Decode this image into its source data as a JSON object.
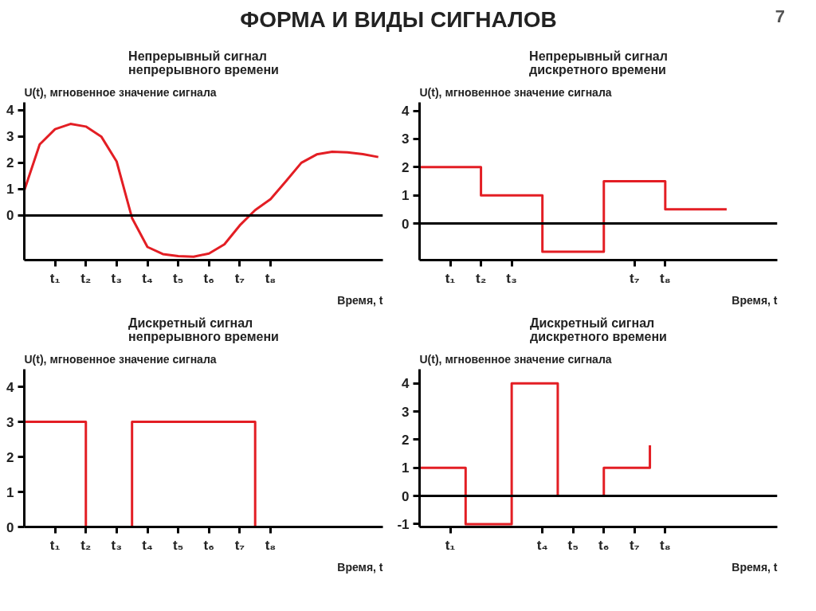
{
  "chart_data": [
    {
      "type": "line",
      "title": "Непрерывный сигнал\nнепрерывного времени",
      "ylabel": "U(t), мгновенное значение сигнала",
      "xlabel": "Время, t",
      "annotations": [
        "ФОРМА И ВИДЫ СИГНАЛОВ",
        "7"
      ],
      "categories": [
        null,
        null,
        "t₁",
        null,
        "t₂",
        null,
        "t₃",
        null,
        "t₄",
        null,
        "t₅",
        null,
        "t₆",
        null,
        "t₇",
        null,
        "t₈",
        null,
        null,
        null,
        null,
        null,
        null,
        null
      ],
      "series": [
        {
          "color": "#e31e24",
          "values": [
            0.95,
            2.7,
            3.28,
            3.48,
            3.38,
            3.0,
            2.05,
            -0.1,
            -1.2,
            -1.47,
            -1.55,
            -1.57,
            -1.45,
            -1.1,
            -0.38,
            0.2,
            0.62,
            1.3,
            2.0,
            2.32,
            2.42,
            2.4,
            2.33,
            2.22
          ]
        }
      ],
      "ylim": [
        -1.7,
        4.3
      ],
      "yticks": [
        0,
        1,
        2,
        3,
        4
      ],
      "ref_lines": [
        {
          "axis": "y",
          "value": 0
        }
      ]
    },
    {
      "type": "step",
      "title": "Непрерывный сигнал\nдискретного времени",
      "ylabel": "U(t), мгновенное значение сигнала",
      "xlabel": "Время, t",
      "categories": [
        null,
        null,
        "t₁",
        null,
        "t₂",
        null,
        "t₃",
        null,
        null,
        null,
        null,
        null,
        null,
        null,
        "t₇",
        null,
        "t₈",
        null,
        null,
        null,
        null,
        null,
        null,
        null
      ],
      "series": [
        {
          "color": "#e31e24",
          "values": [
            2,
            2,
            2,
            2,
            1,
            1,
            1,
            1,
            -1,
            -1,
            -1,
            -1,
            1.5,
            1.5,
            1.5,
            1.5,
            0.5,
            0.5,
            0.5,
            0.5,
            0.5,
            null,
            null,
            null
          ]
        }
      ],
      "ylim": [
        -1.3,
        4.3
      ],
      "yticks": [
        0,
        1,
        2,
        3,
        4
      ],
      "ref_lines": [
        {
          "axis": "y",
          "value": 0
        }
      ]
    },
    {
      "type": "step",
      "title": "Дискретный сигнал\nнепрерывного времени",
      "ylabel": "U(t), мгновенное значение сигнала",
      "xlabel": "Время, t",
      "categories": [
        null,
        null,
        "t₁",
        null,
        "t₂",
        null,
        "t₃",
        null,
        "t₄",
        null,
        "t₅",
        null,
        "t₆",
        null,
        "t₇",
        null,
        "t₈",
        null,
        null,
        null,
        null,
        null,
        null,
        null
      ],
      "series": [
        {
          "color": "#e31e24",
          "values": [
            3,
            3,
            3,
            3,
            0,
            0,
            0,
            3,
            3,
            3,
            3,
            3,
            3,
            3,
            3,
            0,
            null,
            null,
            null,
            null,
            null,
            null,
            null,
            null
          ]
        }
      ],
      "ylim": [
        0,
        4.5
      ],
      "yticks": [
        0,
        1,
        2,
        3,
        4
      ]
    },
    {
      "type": "step",
      "title": "Дискретный сигнал\nдискретного времени",
      "ylabel": "U(t), мгновенное значение сигнала",
      "xlabel": "Время, t",
      "categories": [
        null,
        null,
        "t₁",
        null,
        null,
        null,
        null,
        null,
        "t₄",
        null,
        "t₅",
        null,
        "t₆",
        null,
        "t₇",
        null,
        "t₈",
        null,
        null,
        null,
        null,
        null,
        null,
        null
      ],
      "series": [
        {
          "color": "#e31e24",
          "values": [
            1,
            1,
            1,
            -1,
            -1,
            -1,
            4,
            4,
            4,
            0,
            0,
            0,
            1,
            1,
            1,
            1.8,
            null,
            null,
            null,
            null,
            null,
            null,
            null,
            null
          ]
        }
      ],
      "ylim": [
        -1.1,
        4.5
      ],
      "yticks": [
        -1,
        0,
        1,
        2,
        3,
        4
      ],
      "ref_lines": [
        {
          "axis": "y",
          "value": 0
        }
      ]
    }
  ]
}
